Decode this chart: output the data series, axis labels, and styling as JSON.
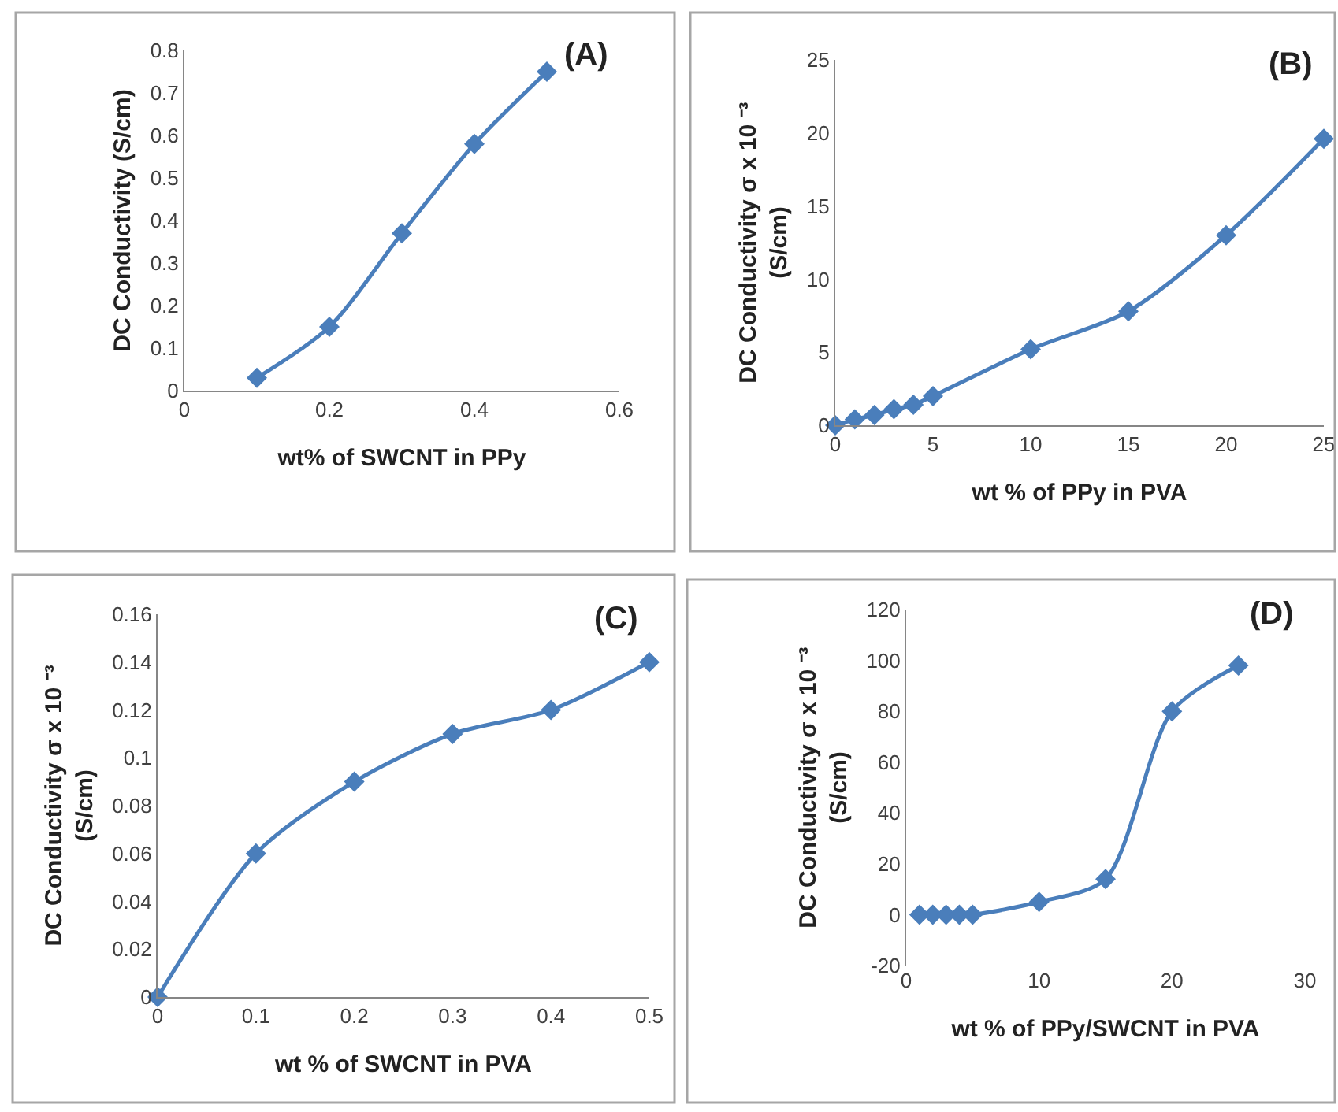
{
  "chart_data": [
    {
      "type": "line",
      "title": "(A)",
      "xlabel": "wt% of SWCNT in PPy",
      "ylabel": "DC Conductivity (S/cm)",
      "x": [
        0.1,
        0.2,
        0.3,
        0.4,
        0.5
      ],
      "series": [
        {
          "color": "#4a7ebb",
          "values": [
            0.03,
            0.15,
            0.37,
            0.58,
            0.75
          ]
        }
      ],
      "xlim": [
        0,
        0.6
      ],
      "xticks": [
        0,
        0.2,
        0.4,
        0.6
      ],
      "ylim": [
        0,
        0.8
      ],
      "yticks": [
        0,
        0.1,
        0.2,
        0.3,
        0.4,
        0.5,
        0.6,
        0.7,
        0.8
      ],
      "marker": "diamond",
      "line_style": "solid"
    },
    {
      "type": "line",
      "title": "(B)",
      "xlabel": "wt % of PPy in PVA",
      "ylabel": "DC Conductivity σ x 10 ⁻³\n(S/cm)",
      "x": [
        0,
        1,
        2,
        3,
        4,
        5,
        10,
        15,
        20,
        25
      ],
      "series": [
        {
          "color": "#4a7ebb",
          "values": [
            0,
            0.4,
            0.7,
            1.1,
            1.4,
            2,
            5.2,
            7.8,
            13,
            19.6
          ]
        }
      ],
      "xlim": [
        0,
        25
      ],
      "xticks": [
        0,
        5,
        10,
        15,
        20,
        25
      ],
      "ylim": [
        0,
        25
      ],
      "yticks": [
        0,
        5,
        10,
        15,
        20,
        25
      ],
      "marker": "diamond",
      "line_style": "solid"
    },
    {
      "type": "line",
      "title": "(C)",
      "xlabel": "wt % of SWCNT in PVA",
      "ylabel": "DC Conductivity σ x 10 ⁻³\n(S/cm)",
      "x": [
        0,
        0.1,
        0.2,
        0.3,
        0.4,
        0.5
      ],
      "series": [
        {
          "color": "#4a7ebb",
          "values": [
            0,
            0.06,
            0.09,
            0.11,
            0.12,
            0.14
          ]
        }
      ],
      "xlim": [
        0,
        0.5
      ],
      "xticks": [
        0,
        0.1,
        0.2,
        0.3,
        0.4,
        0.5
      ],
      "ylim": [
        0,
        0.16
      ],
      "yticks": [
        0,
        0.02,
        0.04,
        0.06,
        0.08,
        0.1,
        0.12,
        0.14,
        0.16
      ],
      "marker": "diamond",
      "line_style": "solid"
    },
    {
      "type": "line",
      "title": "(D)",
      "xlabel": "wt % of PPy/SWCNT in PVA",
      "ylabel": "DC Conductivity σ x 10 ⁻³\n(S/cm)",
      "x": [
        1,
        2,
        3,
        4,
        5,
        10,
        15,
        20,
        25
      ],
      "series": [
        {
          "color": "#4a7ebb",
          "values": [
            0,
            0,
            0,
            0,
            0,
            5,
            14,
            80,
            98
          ]
        }
      ],
      "xlim": [
        0,
        30
      ],
      "xticks": [
        0,
        10,
        20,
        30
      ],
      "ylim": [
        -20,
        120
      ],
      "yticks": [
        -20,
        0,
        20,
        40,
        60,
        80,
        100,
        120
      ],
      "marker": "diamond",
      "line_style": "solid"
    }
  ]
}
